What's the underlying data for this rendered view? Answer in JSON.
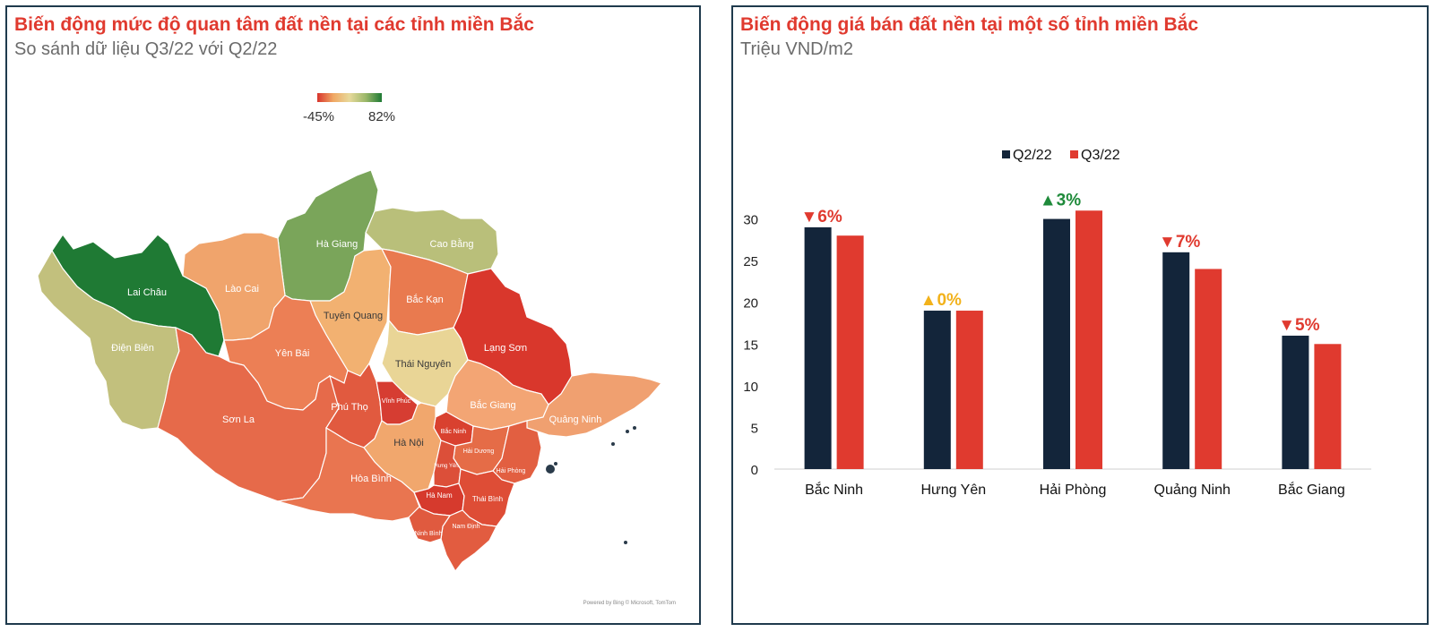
{
  "left": {
    "title": "Biến động mức độ quan tâm đất nền tại các tỉnh miền Bắc",
    "subtitle": "So sánh dữ liệu Q3/22 với Q2/22",
    "legend": {
      "min": "-45%",
      "max": "82%"
    },
    "credit": "Powered by Bing © Microsoft, TomTom",
    "provinces": [
      {
        "name": "Hà Giang",
        "color": "#7aa55a"
      },
      {
        "name": "Cao Bằng",
        "color": "#b9bf7a"
      },
      {
        "name": "Lai Châu",
        "color": "#1f7a34"
      },
      {
        "name": "Lào Cai",
        "color": "#f0a46c"
      },
      {
        "name": "Điện Biên",
        "color": "#c2c07d"
      },
      {
        "name": "Tuyên Quang",
        "color": "#f2b171"
      },
      {
        "name": "Bắc Kạn",
        "color": "#e97a4f"
      },
      {
        "name": "Lạng Sơn",
        "color": "#d9372c"
      },
      {
        "name": "Yên Bái",
        "color": "#ec7f55"
      },
      {
        "name": "Thái Nguyên",
        "color": "#e9d596"
      },
      {
        "name": "Sơn La",
        "color": "#e66a4a"
      },
      {
        "name": "Phú Thọ",
        "color": "#e15a3f"
      },
      {
        "name": "Vĩnh Phúc",
        "color": "#d63d32"
      },
      {
        "name": "Bắc Giang",
        "color": "#f3a574"
      },
      {
        "name": "Quảng Ninh",
        "color": "#f0a070"
      },
      {
        "name": "Bắc Ninh",
        "color": "#d9412f"
      },
      {
        "name": "Hà Nội",
        "color": "#f1a76d"
      },
      {
        "name": "Hải Dương",
        "color": "#e56c47"
      },
      {
        "name": "Hưng Yên",
        "color": "#dc4f39"
      },
      {
        "name": "Hải Phòng",
        "color": "#e25f41"
      },
      {
        "name": "Hòa Bình",
        "color": "#e97550"
      },
      {
        "name": "Hà Nam",
        "color": "#d63a2d"
      },
      {
        "name": "Thái Bình",
        "color": "#de4d36"
      },
      {
        "name": "Nam Định",
        "color": "#e25c40"
      },
      {
        "name": "Ninh Bình",
        "color": "#e05a3f"
      }
    ]
  },
  "right": {
    "title": "Biến động giá bán đất nền tại một số tỉnh miền Bắc",
    "subtitle": "Triệu VND/m2"
  },
  "chart_data": {
    "type": "bar",
    "categories": [
      "Bắc Ninh",
      "Hưng Yên",
      "Hải Phòng",
      "Quảng Ninh",
      "Bắc Giang"
    ],
    "series": [
      {
        "name": "Q2/22",
        "color": "#13253a",
        "values": [
          29,
          19,
          30,
          26,
          16
        ]
      },
      {
        "name": "Q3/22",
        "color": "#e03a2f",
        "values": [
          28,
          19,
          31,
          24,
          15
        ]
      }
    ],
    "annotations": [
      {
        "text": "▼6%",
        "color": "#e03a2f"
      },
      {
        "text": "▲0%",
        "color": "#f2b21b"
      },
      {
        "text": "▲3%",
        "color": "#1e8a3a"
      },
      {
        "text": "▼7%",
        "color": "#e03a2f"
      },
      {
        "text": "▼5%",
        "color": "#e03a2f"
      }
    ],
    "ylim": [
      0,
      35
    ],
    "yticks": [
      0,
      5,
      10,
      15,
      20,
      25,
      30
    ],
    "legend_position": "top-center",
    "grid": false
  }
}
